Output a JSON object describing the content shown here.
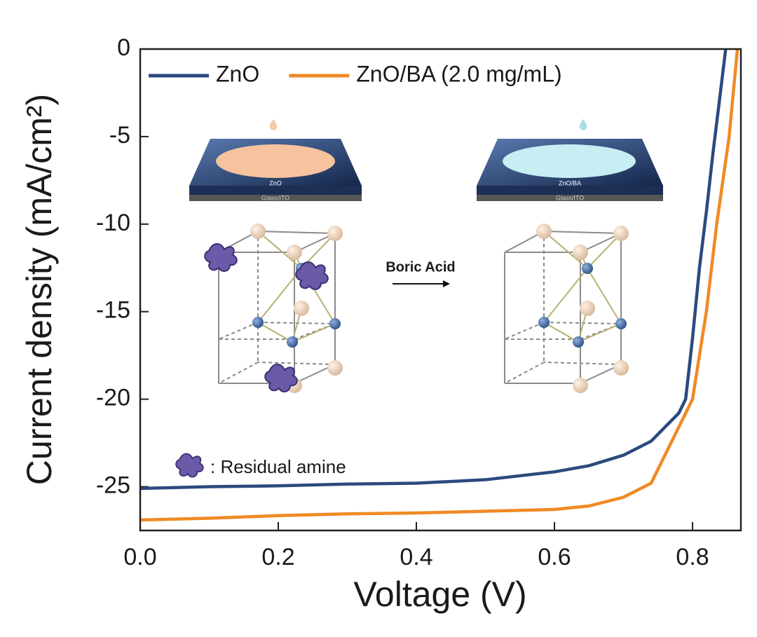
{
  "chart_data": {
    "type": "line",
    "xlabel": "Voltage (V)",
    "ylabel": "Current density (mA/cm²)",
    "xlim": [
      0,
      0.87
    ],
    "ylim": [
      -27.5,
      0
    ],
    "xticks": [
      {
        "value": 0,
        "label": "0.0"
      },
      0.2,
      0.4,
      0.6,
      0.8
    ],
    "yticks": [
      0,
      -5,
      -10,
      -15,
      -20,
      -25
    ],
    "legend": "top-left",
    "series": [
      {
        "name": "ZnO",
        "color": "#2b4a7e",
        "x": [
          0,
          0.1,
          0.2,
          0.3,
          0.4,
          0.5,
          0.6,
          0.65,
          0.7,
          0.74,
          0.76,
          0.78,
          0.79,
          0.8,
          0.81,
          0.82,
          0.83,
          0.84,
          0.848
        ],
        "values": [
          -25.1,
          -25.0,
          -24.95,
          -24.85,
          -24.8,
          -24.6,
          -24.15,
          -23.8,
          -23.2,
          -22.4,
          -21.6,
          -20.8,
          -20,
          -16.5,
          -12.5,
          -9.3,
          -5.8,
          -2.6,
          0
        ]
      },
      {
        "name": "ZnO/BA (2.0 mg/mL)",
        "color": "#f08a24",
        "x": [
          0,
          0.1,
          0.2,
          0.3,
          0.4,
          0.5,
          0.6,
          0.65,
          0.7,
          0.74,
          0.76,
          0.78,
          0.8,
          0.82,
          0.835,
          0.853,
          0.865
        ],
        "values": [
          -26.9,
          -26.8,
          -26.65,
          -26.55,
          -26.5,
          -26.4,
          -26.3,
          -26.1,
          -25.6,
          -24.8,
          -23.2,
          -21.6,
          -20,
          -15,
          -10,
          -5,
          0
        ]
      }
    ],
    "annotations": [
      "ZnO",
      "Glass/ITO",
      "ZnO/BA",
      "Glass/ITO",
      "Boric Acid",
      ": Residual amine"
    ]
  }
}
